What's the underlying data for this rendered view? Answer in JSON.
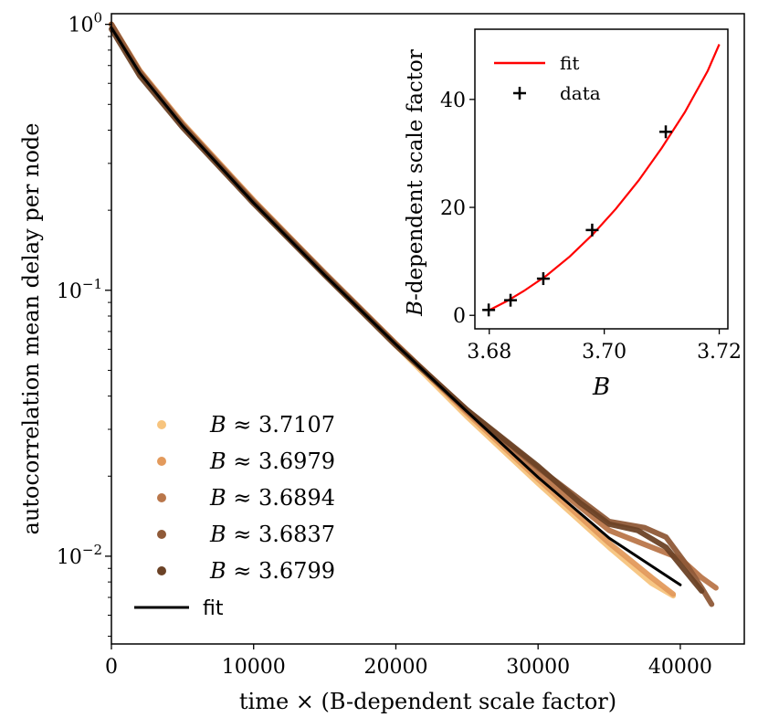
{
  "chart_data": [
    {
      "type": "line",
      "title": "",
      "xlabel": "time × (B-dependent scale factor)",
      "ylabel": "autocorrelation mean delay per node",
      "xlim": [
        0,
        44500
      ],
      "ylim_log10": [
        -2.33,
        0.04
      ],
      "yscale": "log",
      "x_ticks": [
        0,
        10000,
        20000,
        30000,
        40000
      ],
      "x_tick_labels": [
        "0",
        "10000",
        "20000",
        "30000",
        "40000"
      ],
      "y_ticks": [
        1,
        0.1,
        0.01
      ],
      "y_tick_labels": [
        {
          "base": "10",
          "exp": "0"
        },
        {
          "base": "10",
          "exp": "−1"
        },
        {
          "base": "10",
          "exp": "−2"
        }
      ],
      "legend_position": "lower-left",
      "series": [
        {
          "name": "B ≈ 3.7107",
          "label_var": "B",
          "label_rest": " ≈ 3.7107",
          "color": "#f7c47e",
          "x": [
            0,
            2000,
            5000,
            10000,
            15000,
            20000,
            25000,
            30000,
            35000,
            38000,
            39500
          ],
          "y": [
            1.0,
            0.66,
            0.42,
            0.215,
            0.115,
            0.062,
            0.0335,
            0.0188,
            0.0108,
            0.0079,
            0.0071
          ]
        },
        {
          "name": "B ≈ 3.6979",
          "label_var": "B",
          "label_rest": " ≈ 3.6979",
          "color": "#e39a5c",
          "x": [
            0,
            2000,
            5000,
            10000,
            15000,
            20000,
            25000,
            30000,
            35000,
            38000,
            39500
          ],
          "y": [
            1.0,
            0.67,
            0.425,
            0.218,
            0.116,
            0.063,
            0.0345,
            0.0195,
            0.0112,
            0.0083,
            0.0072
          ]
        },
        {
          "name": "B ≈ 3.6894",
          "label_var": "B",
          "label_rest": " ≈ 3.6894",
          "color": "#b9764a",
          "x": [
            0,
            2000,
            5000,
            10000,
            15000,
            20000,
            25000,
            30000,
            35000,
            38000,
            40000,
            41500,
            42500
          ],
          "y": [
            1.0,
            0.665,
            0.42,
            0.216,
            0.116,
            0.063,
            0.035,
            0.0205,
            0.0125,
            0.0108,
            0.0098,
            0.0083,
            0.0076
          ]
        },
        {
          "name": "B ≈ 3.6837",
          "label_var": "B",
          "label_rest": " ≈ 3.6837",
          "color": "#8f5a38",
          "x": [
            0,
            2000,
            5000,
            10000,
            15000,
            20000,
            25000,
            30000,
            35000,
            37500,
            39000,
            40500,
            41500,
            42200
          ],
          "y": [
            1.0,
            0.66,
            0.418,
            0.215,
            0.115,
            0.0625,
            0.0355,
            0.0215,
            0.0135,
            0.0128,
            0.0118,
            0.0092,
            0.0076,
            0.0066
          ]
        },
        {
          "name": "B ≈ 3.6799",
          "label_var": "B",
          "label_rest": " ≈ 3.6799",
          "color": "#6b4226",
          "x": [
            0,
            2000,
            5000,
            10000,
            15000,
            20000,
            25000,
            30000,
            33000,
            35000,
            37000,
            39000,
            40500,
            41500
          ],
          "y": [
            0.96,
            0.64,
            0.41,
            0.212,
            0.114,
            0.062,
            0.0355,
            0.0218,
            0.0158,
            0.0132,
            0.0125,
            0.0108,
            0.0086,
            0.0074
          ]
        },
        {
          "name": "fit",
          "label_var": "",
          "label_rest": "fit",
          "color": "#000000",
          "x": [
            0,
            2000,
            5000,
            10000,
            15000,
            20000,
            25000,
            30000,
            35000,
            40000
          ],
          "y": [
            0.97,
            0.655,
            0.415,
            0.213,
            0.114,
            0.0625,
            0.035,
            0.0198,
            0.0117,
            0.0078
          ]
        }
      ]
    },
    {
      "type": "scatter",
      "title": "",
      "xlabel": "B",
      "ylabel": "B-dependent scale factor",
      "ylabel_var": "B",
      "ylabel_rest": "-dependent scale factor",
      "xlim": [
        3.6775,
        3.7215
      ],
      "ylim": [
        -2.5,
        53
      ],
      "x_ticks": [
        3.68,
        3.7,
        3.72
      ],
      "x_tick_labels": [
        "3.68",
        "3.70",
        "3.72"
      ],
      "y_ticks": [
        0,
        20,
        40
      ],
      "y_tick_labels": [
        "0",
        "20",
        "40"
      ],
      "legend_position": "top-left",
      "legend": [
        {
          "label": "fit",
          "color": "#ff0000",
          "marker": "line"
        },
        {
          "label": "data",
          "color": "#000000",
          "marker": "plus"
        }
      ],
      "data_points": {
        "x": [
          3.6799,
          3.6837,
          3.6894,
          3.6979,
          3.7107
        ],
        "y": [
          1,
          2.8,
          6.8,
          15.8,
          34
        ]
      },
      "fit_curve": {
        "x": [
          3.6799,
          3.683,
          3.686,
          3.69,
          3.694,
          3.698,
          3.702,
          3.706,
          3.71,
          3.714,
          3.718,
          3.72
        ],
        "y": [
          0.9,
          2.6,
          4.5,
          7.4,
          10.9,
          15.0,
          19.7,
          25.0,
          31.0,
          37.6,
          45.3,
          50.2
        ]
      }
    }
  ]
}
